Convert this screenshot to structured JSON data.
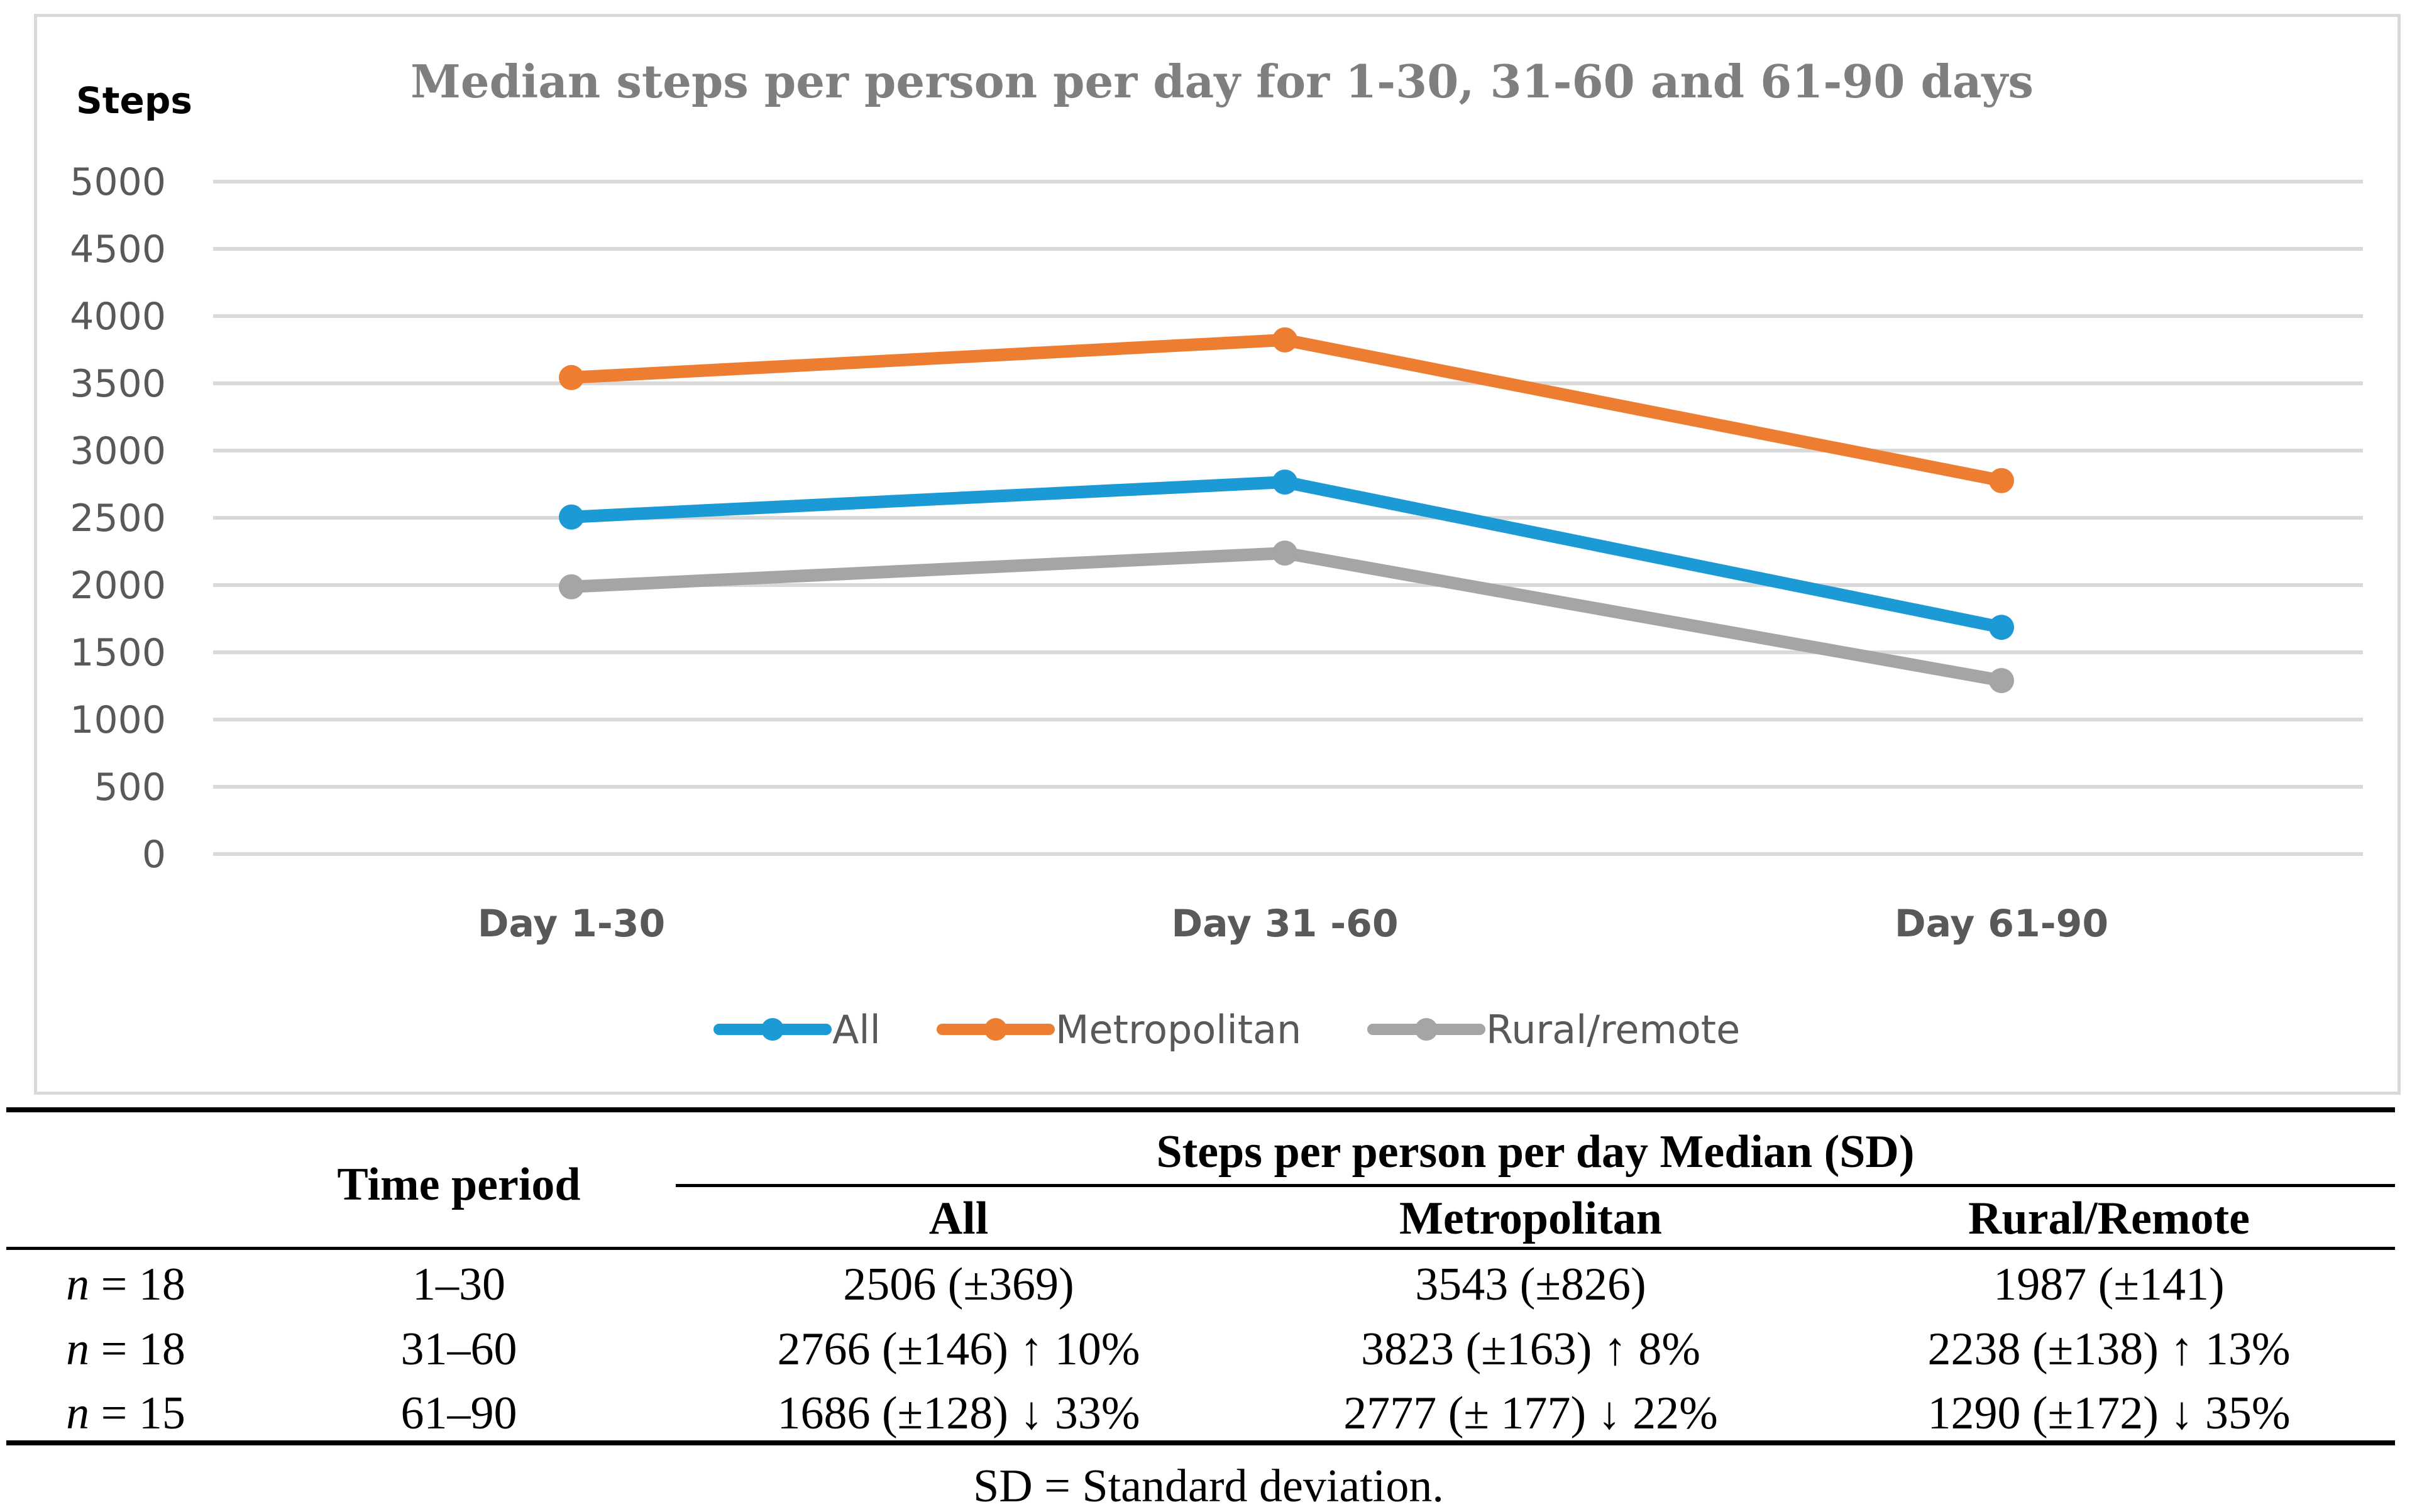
{
  "chart_data": {
    "type": "line",
    "title": "Median steps per person per day for 1-30, 31-60 and 61-90 days",
    "ylabel": "Steps",
    "xlabel": "",
    "categories": [
      "Day 1-30",
      "Day 31 -60",
      "Day 61-90"
    ],
    "ylim": [
      0,
      5000
    ],
    "yticks": [
      0,
      500,
      1000,
      1500,
      2000,
      2500,
      3000,
      3500,
      4000,
      4500,
      5000
    ],
    "grid": true,
    "legend": "bottom",
    "series": [
      {
        "name": "All",
        "color": "#1b9ad6",
        "values": [
          2506,
          2766,
          1686
        ]
      },
      {
        "name": "Metropolitan",
        "color": "#ed7d31",
        "values": [
          3543,
          3823,
          2777
        ]
      },
      {
        "name": "Rural/remote",
        "color": "#a5a5a5",
        "values": [
          1987,
          2238,
          1290
        ]
      }
    ]
  },
  "table": {
    "time_period_header": "Time period",
    "group_header": "Steps per person per day Median (SD)",
    "col_headers": [
      "All",
      "Metropolitan",
      "Rural/Remote"
    ],
    "rows": [
      {
        "n_label": "n",
        "n_value": "= 18",
        "period": "1–30",
        "all": "2506 (±369)",
        "metro": "3543 (±826)",
        "rural": "1987 (±141)"
      },
      {
        "n_label": "n",
        "n_value": "= 18",
        "period": "31–60",
        "all": "2766 (±146) ↑ 10%",
        "metro": "3823 (±163) ↑ 8%",
        "rural": "2238 (±138) ↑ 13%"
      },
      {
        "n_label": "n",
        "n_value": "= 15",
        "period": "61–90",
        "all": "1686 (±128) ↓ 33%",
        "metro": "2777 (± 177) ↓ 22%",
        "rural": "1290 (±172) ↓ 35%"
      }
    ],
    "footnote": "SD = Standard deviation."
  }
}
